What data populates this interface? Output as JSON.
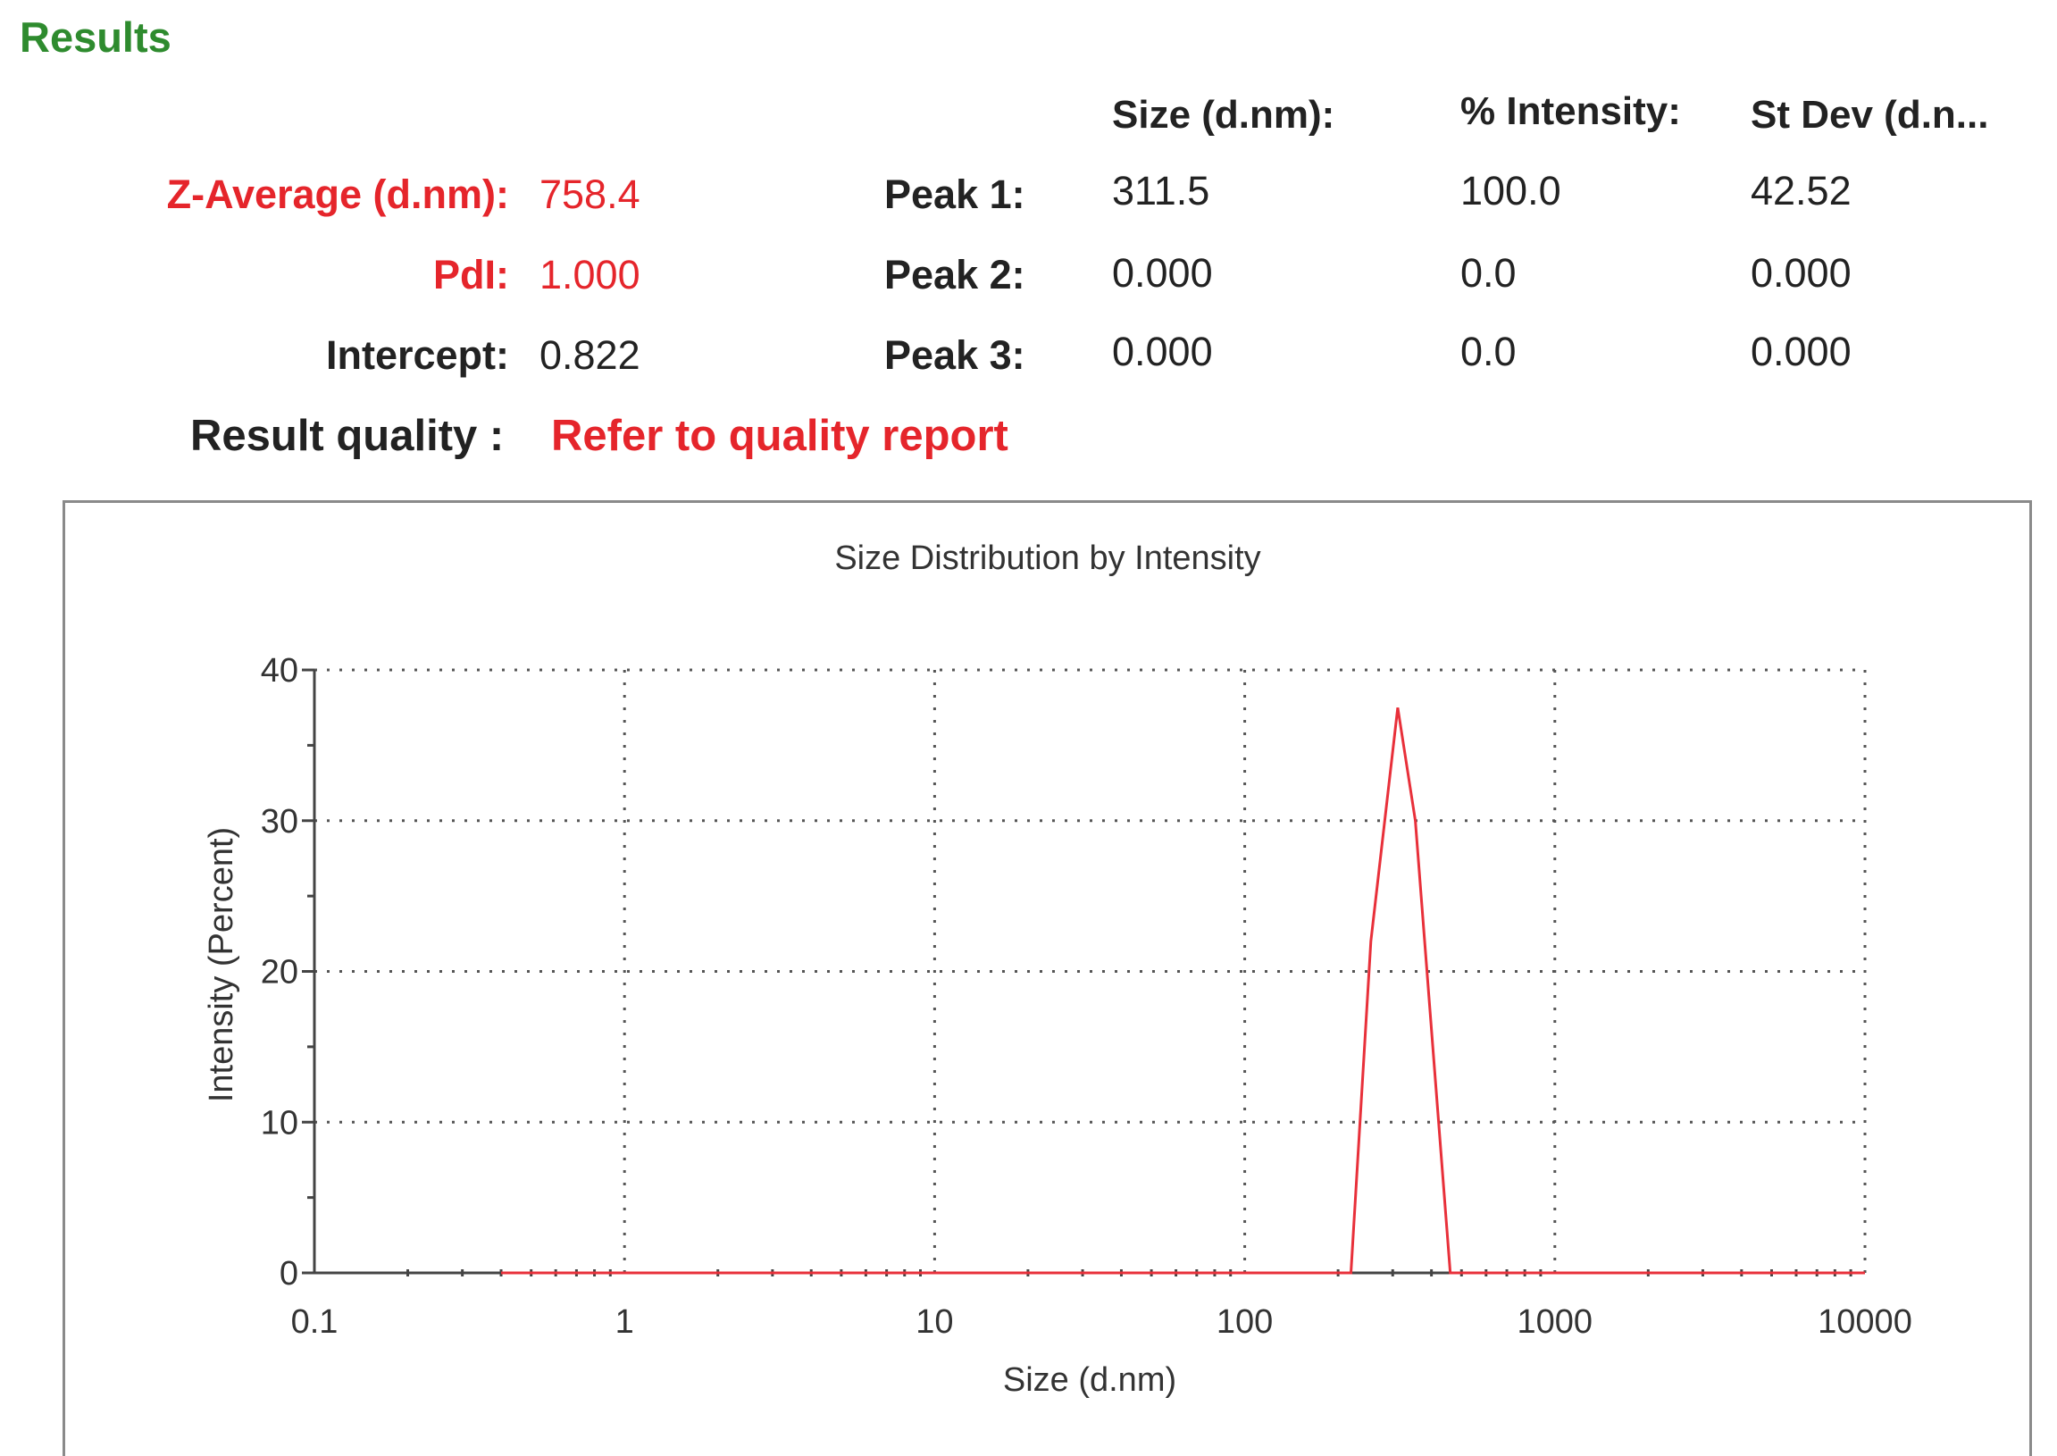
{
  "section_title": "Results",
  "summary": {
    "z_average": {
      "label": "Z-Average (d.nm):",
      "value": "758.4"
    },
    "pdi": {
      "label": "PdI:",
      "value": "1.000"
    },
    "intercept": {
      "label": "Intercept:",
      "value": "0.822"
    }
  },
  "result_quality": {
    "label": "Result quality :",
    "value": "Refer to quality report"
  },
  "peak_table": {
    "headers": [
      "Size (d.nm):",
      "% Intensity:",
      "St Dev (d.n..."
    ],
    "rows": [
      {
        "label": "Peak 1:",
        "size": "311.5",
        "intensity": "100.0",
        "stdev": "42.52"
      },
      {
        "label": "Peak 2:",
        "size": "0.000",
        "intensity": "0.0",
        "stdev": "0.000"
      },
      {
        "label": "Peak 3:",
        "size": "0.000",
        "intensity": "0.0",
        "stdev": "0.000"
      }
    ]
  },
  "colors": {
    "title_green": "#2e8b2e",
    "highlight_red": "#e5252b",
    "curve_red": "#e8303a"
  },
  "chart_data": {
    "type": "line",
    "title": "Size Distribution by Intensity",
    "xlabel": "Size (d.nm)",
    "ylabel": "Intensity (Percent)",
    "x_scale": "log",
    "xlim": [
      0.1,
      10000
    ],
    "ylim": [
      0,
      40
    ],
    "x_ticks": [
      "0.1",
      "1",
      "10",
      "100",
      "1000",
      "10000"
    ],
    "y_ticks": [
      "0",
      "10",
      "20",
      "30",
      "40"
    ],
    "grid": true,
    "series": [
      {
        "color": "#e8303a",
        "x": [
          0.4,
          50,
          220,
          255,
          311.5,
          355,
          460,
          10000
        ],
        "y": [
          0,
          0,
          0,
          22,
          37.5,
          30,
          0,
          0
        ]
      }
    ]
  }
}
